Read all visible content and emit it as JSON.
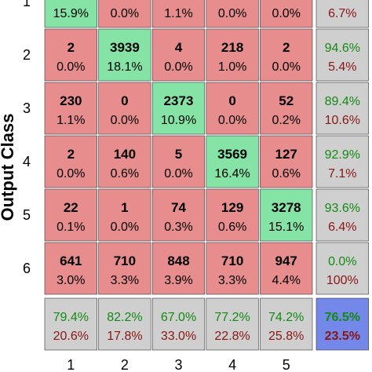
{
  "chart_data": {
    "type": "heatmap",
    "ylabel": "Output Class",
    "xlabel": "",
    "row_labels": [
      "1",
      "2",
      "3",
      "4",
      "5",
      "6"
    ],
    "col_labels": [
      "1",
      "2",
      "3",
      "4",
      "5"
    ],
    "rows": [
      {
        "counts": [
          null,
          null,
          null,
          null,
          null
        ],
        "percents": [
          "15.9%",
          "0.0%",
          "1.1%",
          "0.0%",
          "0.0%"
        ],
        "summary": [
          null,
          "6.7%"
        ]
      },
      {
        "counts": [
          "2",
          "3939",
          "4",
          "218",
          "2"
        ],
        "percents": [
          "0.0%",
          "18.1%",
          "0.0%",
          "1.0%",
          "0.0%"
        ],
        "summary": [
          "94.6%",
          "5.4%"
        ]
      },
      {
        "counts": [
          "230",
          "0",
          "2373",
          "0",
          "52"
        ],
        "percents": [
          "1.1%",
          "0.0%",
          "10.9%",
          "0.0%",
          "0.2%"
        ],
        "summary": [
          "89.4%",
          "10.6%"
        ]
      },
      {
        "counts": [
          "2",
          "140",
          "5",
          "3569",
          "127"
        ],
        "percents": [
          "0.0%",
          "0.6%",
          "0.0%",
          "16.4%",
          "0.6%"
        ],
        "summary": [
          "92.9%",
          "7.1%"
        ]
      },
      {
        "counts": [
          "22",
          "1",
          "74",
          "129",
          "3278"
        ],
        "percents": [
          "0.1%",
          "0.0%",
          "0.3%",
          "0.6%",
          "15.1%"
        ],
        "summary": [
          "93.6%",
          "6.4%"
        ]
      },
      {
        "counts": [
          "641",
          "710",
          "848",
          "710",
          "947"
        ],
        "percents": [
          "3.0%",
          "3.3%",
          "3.9%",
          "3.3%",
          "4.4%"
        ],
        "summary": [
          "0.0%",
          "100%"
        ]
      }
    ],
    "column_summary": [
      [
        "79.4%",
        "20.6%"
      ],
      [
        "82.2%",
        "17.8%"
      ],
      [
        "67.0%",
        "33.0%"
      ],
      [
        "77.2%",
        "22.8%"
      ],
      [
        "74.2%",
        "25.8%"
      ]
    ],
    "overall": [
      "76.5%",
      "23.5%"
    ],
    "colors": {
      "diagonal": "#84e3a5",
      "off_diagonal": "#e78d8d",
      "summary": "#cfcfcf",
      "overall": "#7388e8",
      "good_text": "#138a13",
      "bad_text": "#8a1616",
      "grid_line": "#ffffff",
      "border": "#333333"
    }
  }
}
